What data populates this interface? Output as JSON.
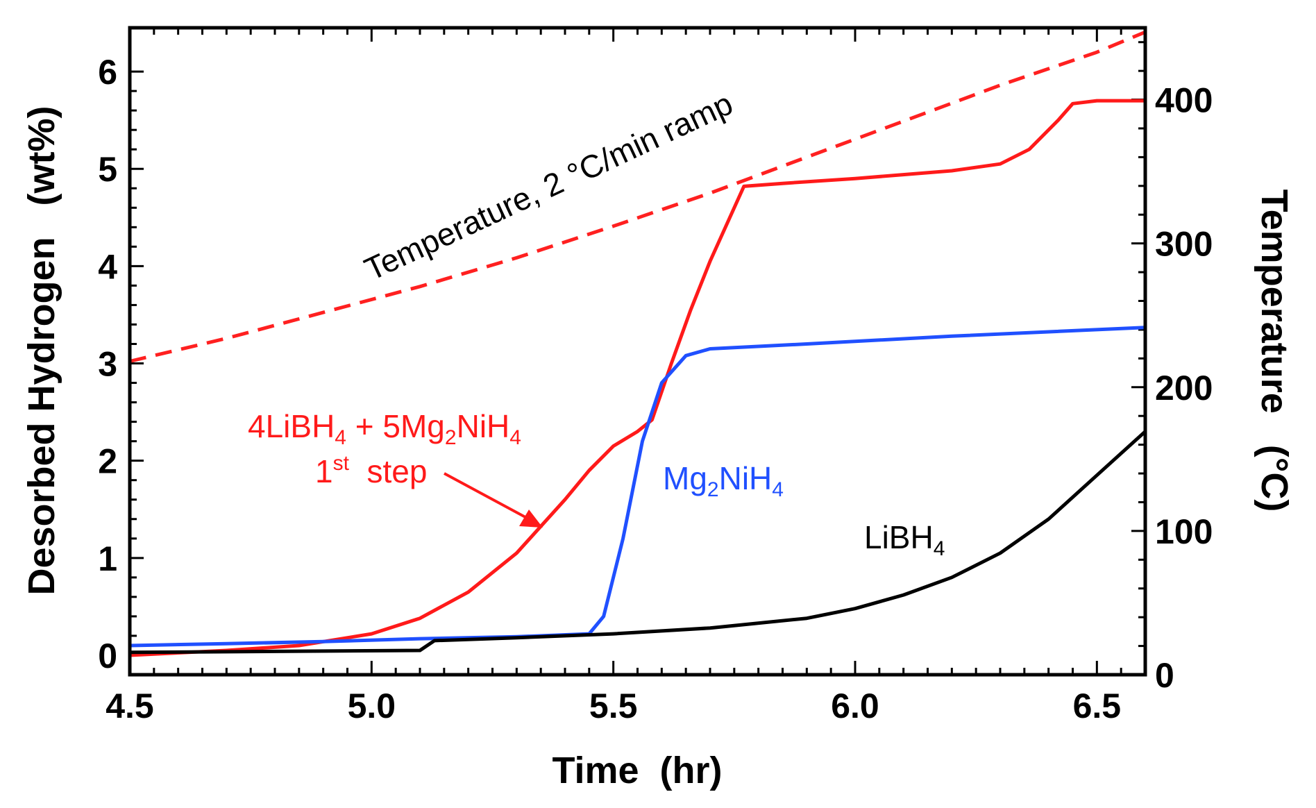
{
  "chart_data": {
    "type": "line",
    "xlabel": "Time  (hr)",
    "ylabel": "Desorbed Hydrogen   (wt%)",
    "y2label": "Temperature   (°C)",
    "xlim": [
      4.5,
      6.6
    ],
    "ylim": [
      -0.2,
      6.45
    ],
    "y2lim": [
      0,
      450
    ],
    "xticks": [
      4.5,
      5.0,
      5.5,
      6.0,
      6.5
    ],
    "xtick_labels": [
      "4.5",
      "5.0",
      "5.5",
      "6.0",
      "6.5"
    ],
    "yticks": [
      0,
      1,
      2,
      3,
      4,
      5,
      6
    ],
    "ytick_labels": [
      "0",
      "1",
      "2",
      "3",
      "4",
      "5",
      "6"
    ],
    "y2ticks": [
      0,
      100,
      200,
      300,
      400
    ],
    "y2tick_labels": [
      "0",
      "100",
      "200",
      "300",
      "400"
    ],
    "series": [
      {
        "name": "Temperature, 2 °C/min ramp",
        "axis": "right",
        "color": "#ff2020",
        "dashed": true,
        "x": [
          4.5,
          4.7,
          4.9,
          5.1,
          5.3,
          5.5,
          5.7,
          5.9,
          6.1,
          6.3,
          6.5,
          6.6
        ],
        "y": [
          218,
          234,
          252,
          270,
          290,
          312,
          335,
          360,
          385,
          410,
          433,
          447
        ]
      },
      {
        "name": "4LiBH4 + 5Mg2NiH4 1st step",
        "axis": "left",
        "color": "#ff1a1a",
        "dashed": false,
        "x": [
          4.5,
          4.7,
          4.85,
          5.0,
          5.1,
          5.2,
          5.3,
          5.4,
          5.45,
          5.5,
          5.55,
          5.58,
          5.62,
          5.66,
          5.7,
          5.77,
          5.85,
          6.0,
          6.2,
          6.3,
          6.36,
          6.42,
          6.45,
          6.5,
          6.6
        ],
        "y": [
          0.0,
          0.05,
          0.1,
          0.22,
          0.38,
          0.65,
          1.05,
          1.6,
          1.9,
          2.15,
          2.3,
          2.42,
          3.0,
          3.55,
          4.05,
          4.82,
          4.85,
          4.9,
          4.98,
          5.05,
          5.2,
          5.5,
          5.67,
          5.7,
          5.7
        ]
      },
      {
        "name": "Mg2NiH4",
        "axis": "left",
        "color": "#2050ff",
        "dashed": false,
        "x": [
          4.5,
          4.7,
          4.9,
          5.1,
          5.3,
          5.45,
          5.48,
          5.52,
          5.56,
          5.6,
          5.65,
          5.7,
          5.9,
          6.2,
          6.6
        ],
        "y": [
          0.1,
          0.12,
          0.14,
          0.17,
          0.19,
          0.22,
          0.4,
          1.2,
          2.2,
          2.8,
          3.08,
          3.15,
          3.2,
          3.28,
          3.37
        ]
      },
      {
        "name": "LiBH4",
        "axis": "left",
        "color": "#000000",
        "dashed": false,
        "x": [
          4.5,
          4.8,
          5.1,
          5.13,
          5.3,
          5.5,
          5.7,
          5.9,
          6.0,
          6.1,
          6.2,
          6.3,
          6.4,
          6.5,
          6.6
        ],
        "y": [
          0.03,
          0.04,
          0.05,
          0.15,
          0.18,
          0.22,
          0.28,
          0.38,
          0.48,
          0.62,
          0.8,
          1.05,
          1.4,
          1.85,
          2.3
        ]
      }
    ],
    "annotations": {
      "temp_label": "Temperature, 2 °C/min ramp",
      "composite_label": {
        "parts": [
          "4LiBH",
          "4",
          " + 5Mg",
          "2",
          "NiH",
          "4"
        ]
      },
      "composite_step": {
        "parts": [
          "1",
          "st",
          "  step"
        ]
      },
      "mg_label": {
        "parts": [
          "Mg",
          "2",
          "NiH",
          "4"
        ]
      },
      "libh_label": {
        "parts": [
          "LiBH",
          "4"
        ]
      }
    }
  }
}
